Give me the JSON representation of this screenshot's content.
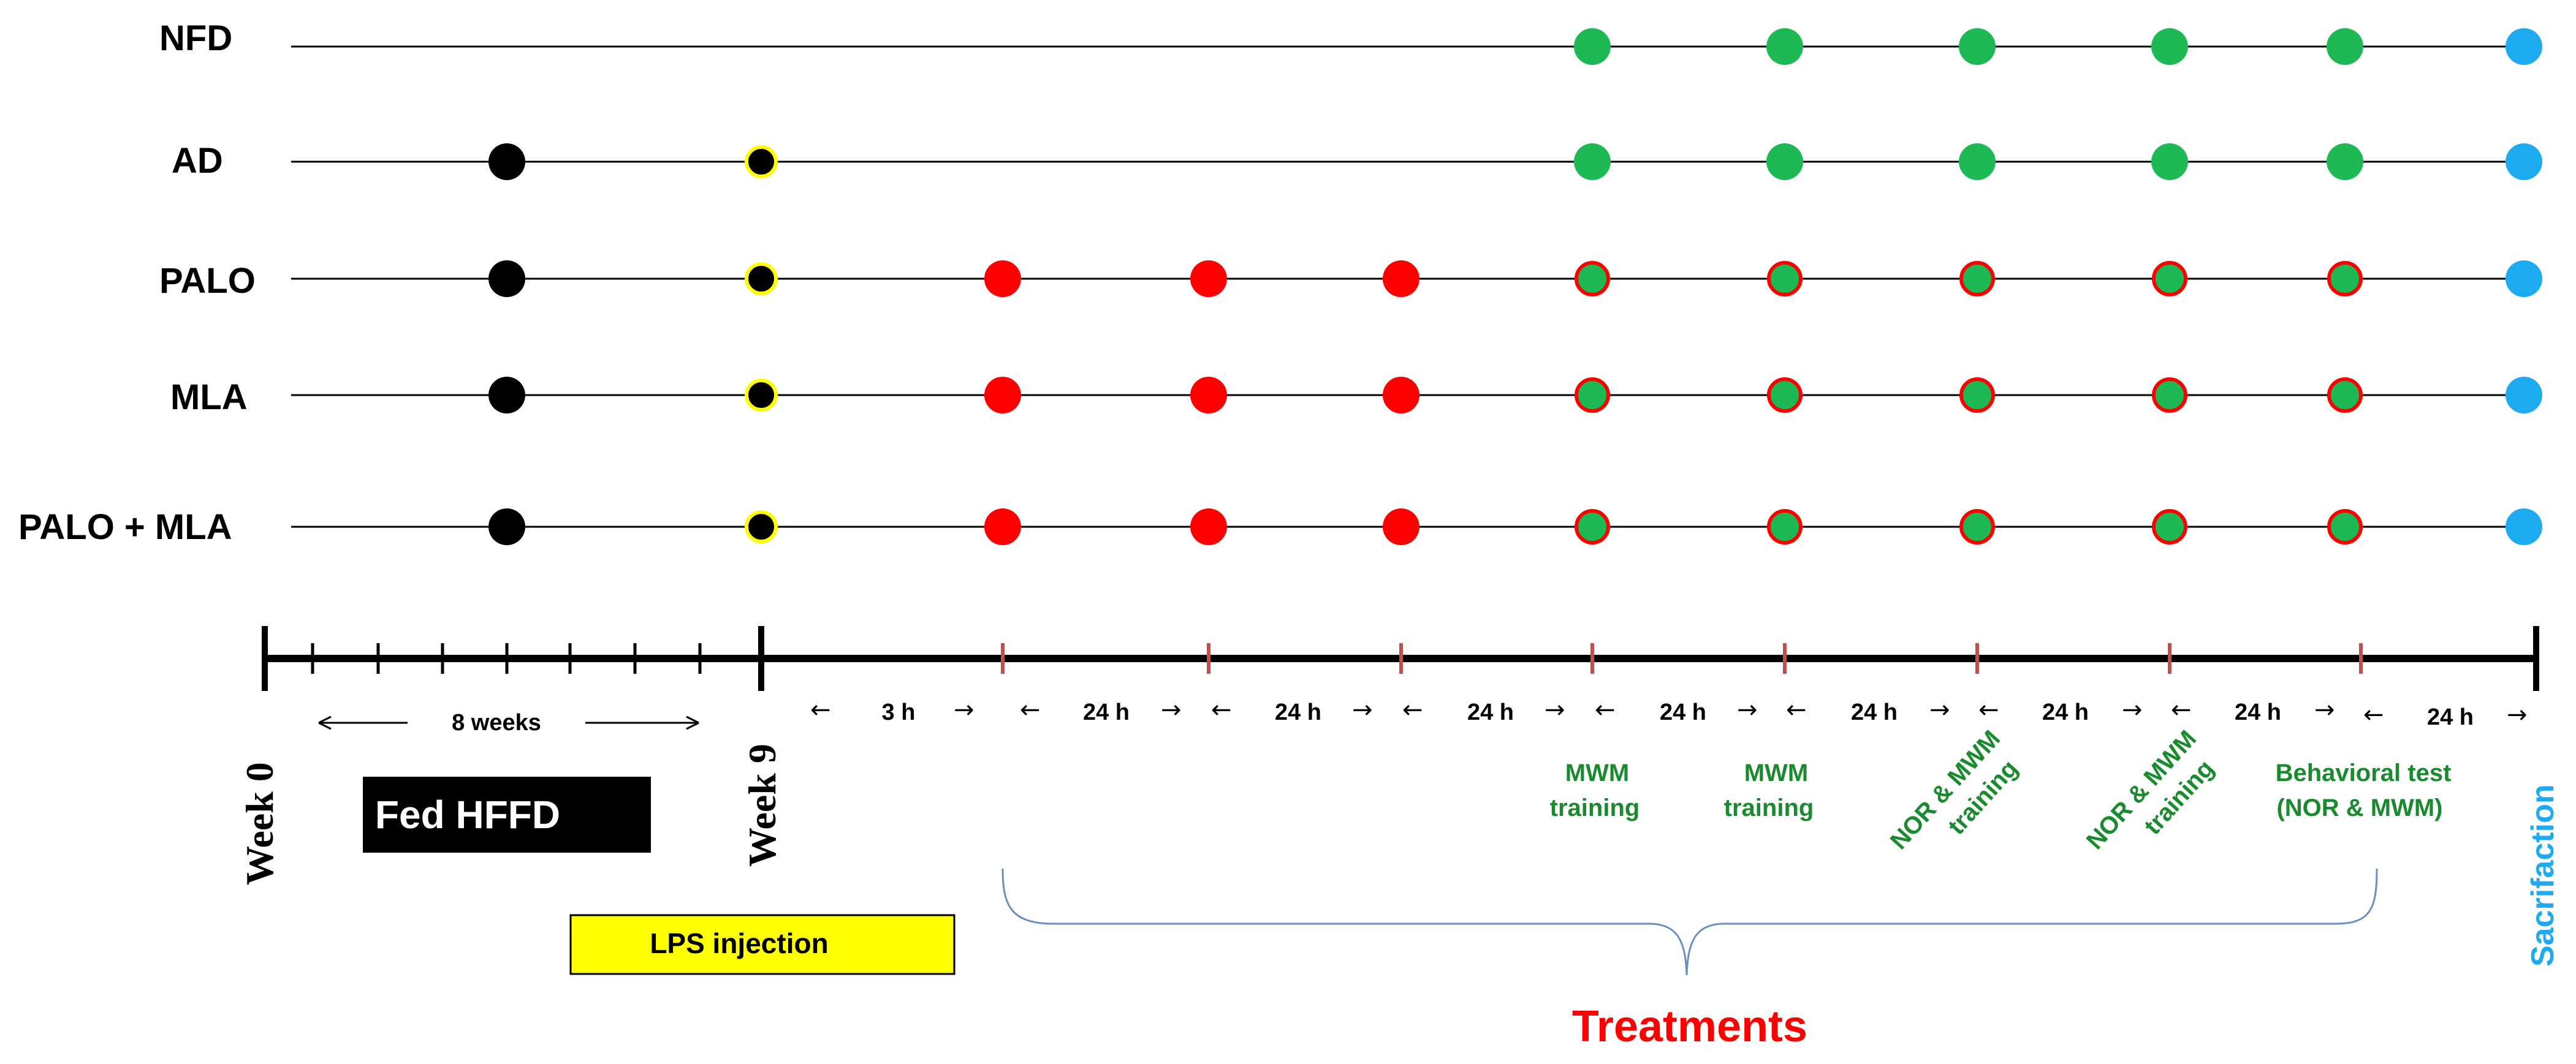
{
  "groups": [
    "NFD",
    "AD",
    "PALO",
    "MLA",
    "PALO + MLA"
  ],
  "week_start": "Week  0",
  "week_end": "Week  9",
  "eight_weeks": "8 weeks",
  "fed_box": "Fed HFFD",
  "lps_box": "LPS injection",
  "treatments": "Treatments",
  "sacrifaction": "Sacrifaction",
  "intervals": [
    "3 h",
    "24 h",
    "24 h",
    "24 h",
    "24 h",
    "24 h",
    "24 h",
    "24 h",
    "24 h"
  ],
  "events": {
    "mwm1": [
      "MWM",
      "training"
    ],
    "mwm2": [
      "MWM",
      "training"
    ],
    "nor1": [
      "NOR & MWM",
      "training"
    ],
    "nor2": [
      "NOR & MWM",
      "training"
    ],
    "behav": [
      "Behavioral test",
      "(NOR & MWM)"
    ]
  },
  "colors": {
    "hffd": "#000000",
    "lps_dot_border": "#ffff00",
    "treatment": "#ff0000",
    "behavioral": "#1db954",
    "sacrifice": "#1eaaf1",
    "event_text": "#1a8a2e"
  }
}
